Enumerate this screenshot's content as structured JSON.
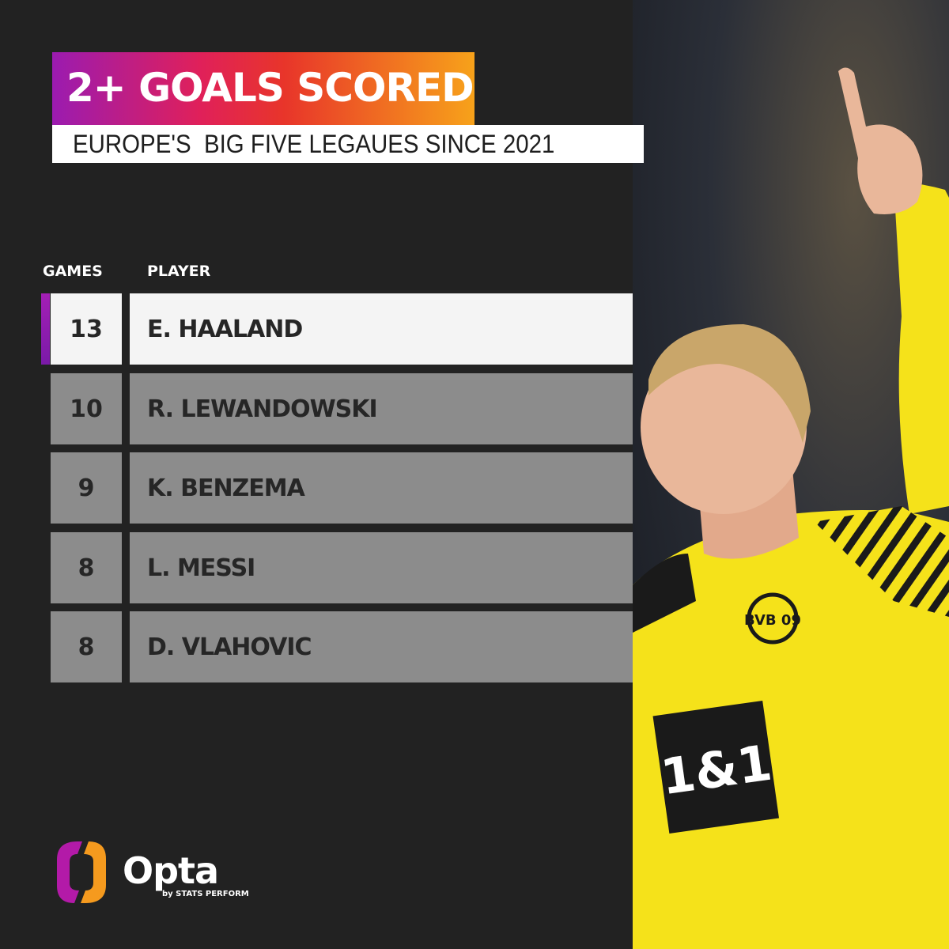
{
  "header": {
    "title": "2+ GOALS SCORED",
    "subtitle": "EUROPE'S  BIG FIVE LEGAUES SINCE 2021"
  },
  "colors": {
    "background": "#222222",
    "highlight_accent": "#9b1bb0",
    "row_grey": "#8c8c8c",
    "row_highlight": "#f4f4f4",
    "jersey_yellow": "#f5e21a"
  },
  "chart_data": {
    "type": "table",
    "title": "2+ GOALS SCORED",
    "subtitle": "EUROPE'S  BIG FIVE LEGAUES SINCE 2021",
    "columns": [
      "GAMES",
      "PLAYER"
    ],
    "rows": [
      {
        "games": "13",
        "player": "E. HAALAND",
        "highlighted": true
      },
      {
        "games": "10",
        "player": "R. LEWANDOWSKI",
        "highlighted": false
      },
      {
        "games": "9",
        "player": "K. BENZEMA",
        "highlighted": false
      },
      {
        "games": "8",
        "player": "L. MESSI",
        "highlighted": false
      },
      {
        "games": "8",
        "player": "D. VLAHOVIC",
        "highlighted": false
      }
    ]
  },
  "photo": {
    "sponsor": "1&1",
    "crest": "BVB 09"
  },
  "logo": {
    "name": "Opta",
    "tagline": "by STATS PERFORM"
  }
}
